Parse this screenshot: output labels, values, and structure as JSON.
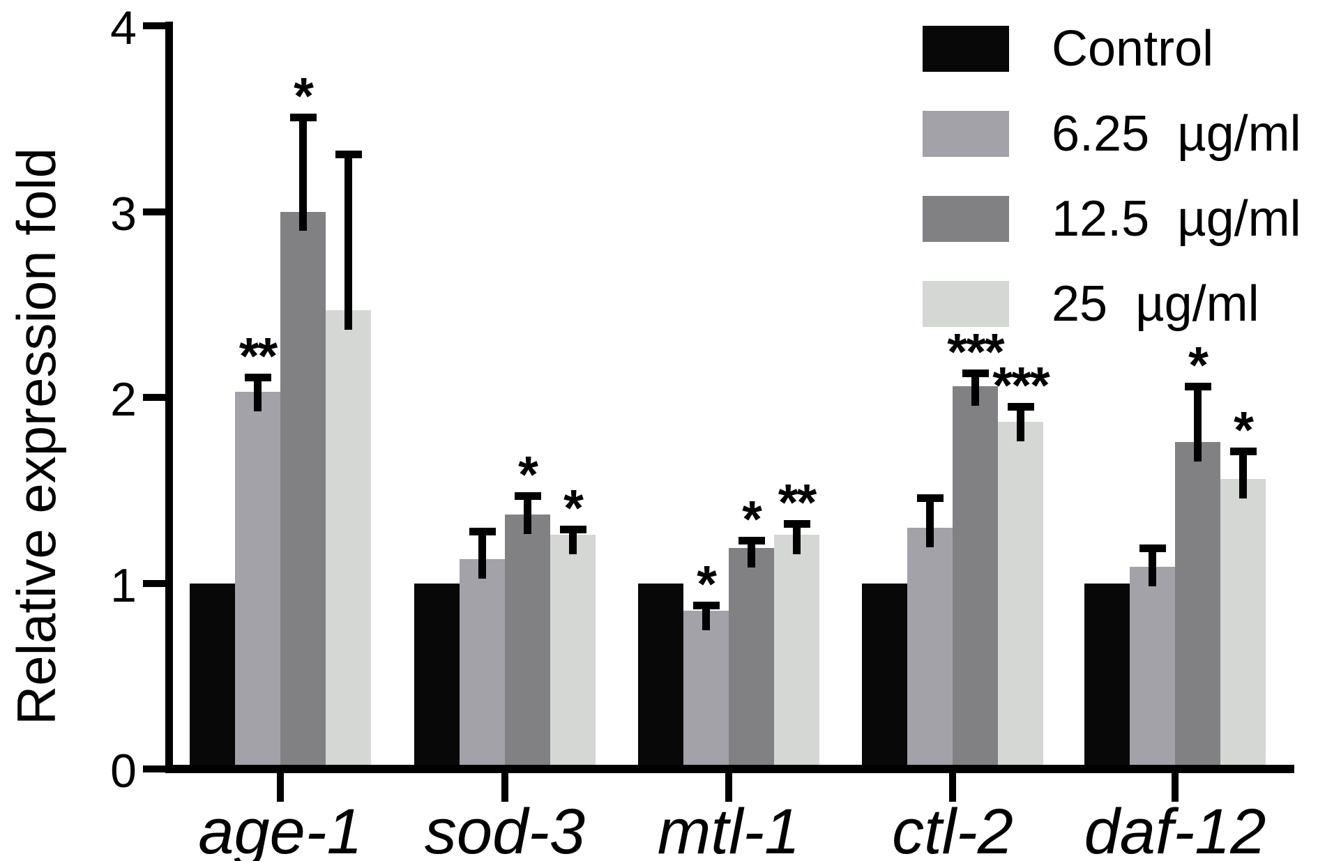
{
  "figure": {
    "background": "#ffffff"
  },
  "legend": {
    "position": "top-right",
    "items": [
      {
        "label": "Control",
        "color": "#080808"
      },
      {
        "label": "6.25  µg/ml",
        "color": "#a2a2a8"
      },
      {
        "label": "12.5  µg/ml",
        "color": "#818184"
      },
      {
        "label": "25  µg/ml",
        "color": "#d5d7d5"
      }
    ]
  },
  "chart_data": {
    "type": "bar",
    "title": "",
    "xlabel": "",
    "ylabel": "Relative expression fold",
    "ylim": [
      0,
      4
    ],
    "yticks": [
      0,
      1,
      2,
      3,
      4
    ],
    "grid": false,
    "error_bars": "upper only, cap width ~38px",
    "legend_position": "top-right",
    "categories": [
      "age-1",
      "sod-3",
      "mtl-1",
      "ctl-2",
      "daf-12"
    ],
    "series": [
      {
        "name": "Control",
        "color": "#080808",
        "values": [
          1.0,
          1.0,
          1.0,
          1.0,
          1.0
        ],
        "errors": [
          0,
          0,
          0,
          0,
          0
        ],
        "significance": [
          "",
          "",
          "",
          "",
          ""
        ]
      },
      {
        "name": "6.25 µg/ml",
        "color": "#a2a2a8",
        "values": [
          2.03,
          1.13,
          0.85,
          1.3,
          1.09
        ],
        "errors": [
          0.08,
          0.15,
          0.03,
          0.16,
          0.1
        ],
        "significance": [
          "**",
          "",
          "*",
          "",
          ""
        ]
      },
      {
        "name": "12.5 µg/ml",
        "color": "#818184",
        "values": [
          3.0,
          1.37,
          1.19,
          2.06,
          1.76
        ],
        "errors": [
          0.51,
          0.1,
          0.04,
          0.07,
          0.3
        ],
        "significance": [
          "*",
          "*",
          "*",
          "***",
          "*"
        ]
      },
      {
        "name": "25 µg/ml",
        "color": "#d5d7d5",
        "values": [
          2.47,
          1.26,
          1.26,
          1.87,
          1.56
        ],
        "errors": [
          0.84,
          0.03,
          0.06,
          0.08,
          0.15
        ],
        "significance": [
          "",
          "*",
          "**",
          "***",
          "*"
        ]
      }
    ]
  }
}
